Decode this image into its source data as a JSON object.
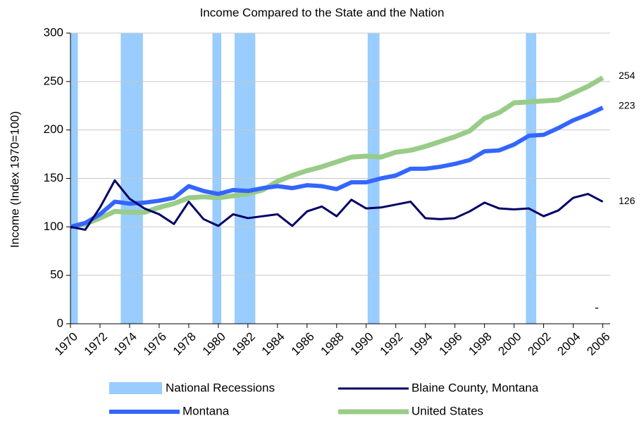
{
  "chart_data": {
    "type": "line",
    "title": "Income Compared to the State and the Nation",
    "y_label": "Income (Index 1970=100)",
    "annotation": "-",
    "x": [
      1970,
      1971,
      1972,
      1973,
      1974,
      1975,
      1976,
      1977,
      1978,
      1979,
      1980,
      1981,
      1982,
      1983,
      1984,
      1985,
      1986,
      1987,
      1988,
      1989,
      1990,
      1991,
      1992,
      1993,
      1994,
      1995,
      1996,
      1997,
      1998,
      1999,
      2000,
      2001,
      2002,
      2003,
      2004,
      2005,
      2006
    ],
    "xlim": [
      1970,
      2006.5
    ],
    "xticks": [
      1970,
      1972,
      1974,
      1976,
      1978,
      1980,
      1982,
      1984,
      1986,
      1988,
      1990,
      1992,
      1994,
      1996,
      1998,
      2000,
      2002,
      2004,
      2006
    ],
    "ylim": [
      0,
      300
    ],
    "yticks": [
      0,
      50,
      100,
      150,
      200,
      250,
      300
    ],
    "recessions": {
      "name": "National Recessions",
      "color": "#99ccff",
      "spans": [
        [
          1970,
          1970.5
        ],
        [
          1973.4,
          1974.9
        ],
        [
          1979.6,
          1980.2
        ],
        [
          1981.1,
          1982.5
        ],
        [
          1990.1,
          1990.9
        ],
        [
          2000.8,
          2001.5
        ]
      ]
    },
    "series": [
      {
        "name": "Blaine County, Montana",
        "color": "#000066",
        "width": 3,
        "values": [
          100,
          97,
          120,
          148,
          129,
          119,
          113,
          103,
          126,
          108,
          101,
          113,
          109,
          111,
          113,
          101,
          116,
          121,
          111,
          128,
          119,
          120,
          123,
          126,
          109,
          108,
          109,
          116,
          125,
          119,
          118,
          119,
          111,
          117,
          130,
          134,
          126
        ]
      },
      {
        "name": "Montana",
        "color": "#3366ff",
        "width": 6,
        "values": [
          100,
          104,
          113,
          126,
          124,
          125,
          127,
          130,
          142,
          137,
          134,
          138,
          137,
          140,
          142,
          140,
          143,
          142,
          139,
          146,
          146,
          150,
          153,
          160,
          160,
          162,
          165,
          169,
          178,
          179,
          185,
          194,
          195,
          202,
          210,
          216,
          223
        ]
      },
      {
        "name": "United States",
        "color": "#99cc88",
        "width": 7,
        "values": [
          100,
          103,
          109,
          116,
          115,
          115,
          120,
          124,
          130,
          131,
          130,
          132,
          134,
          138,
          147,
          153,
          158,
          162,
          167,
          172,
          173,
          172,
          177,
          179,
          183,
          188,
          193,
          199,
          212,
          218,
          228,
          229,
          230,
          231,
          238,
          245,
          254
        ]
      }
    ]
  }
}
